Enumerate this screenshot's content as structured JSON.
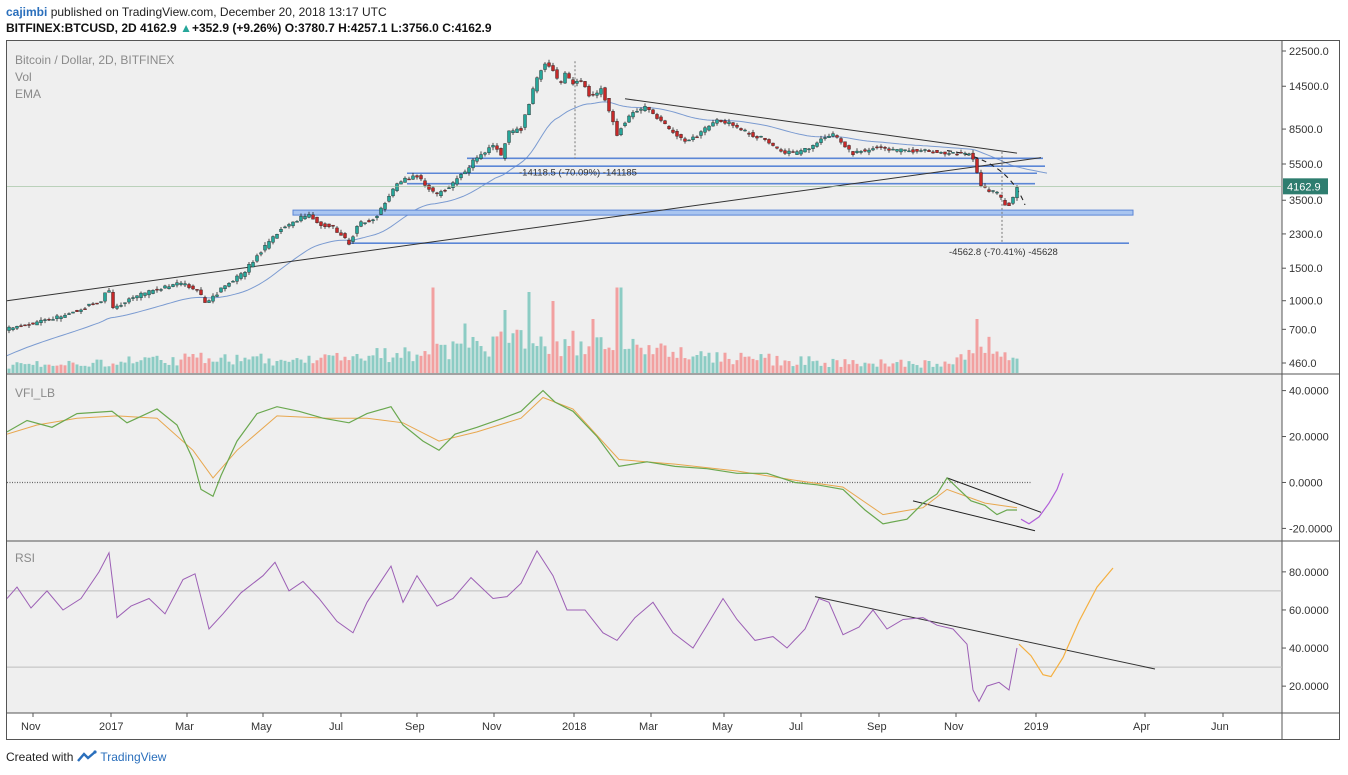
{
  "header": {
    "author": "cajimbi",
    "published_text": "published on TradingView.com, December 20, 2018 13:17 UTC",
    "symbol": "BITFINEX:BTCUSD, 2D",
    "last": "4162.9",
    "change_arrow": "▲",
    "change": "+352.9 (+9.26%)",
    "o_label": "O:",
    "o_value": "3780.7",
    "h_label": "H:",
    "h_value": "4257.1",
    "l_label": "L:",
    "l_value": "3756.0",
    "c_label": "C:",
    "c_value": "4162.9"
  },
  "legend": {
    "title": "Bitcoin / Dollar, 2D, BITFINEX",
    "vol": "Vol",
    "ema": "EMA",
    "vfi": "VFI_LB",
    "rsi": "RSI"
  },
  "footer": {
    "created_with": "Created with",
    "brand": "TradingView"
  },
  "colors": {
    "up": "#26a69a",
    "down": "#c62828",
    "wick": "#222222",
    "vol_up": "#8cccc4",
    "vol_down": "#f2a0a0",
    "ema": "#7b9bd1",
    "vfi": "#6aa84f",
    "vfi_signal": "#e8a74e",
    "rsi": "#9c5fb5",
    "projection_orange": "#f5b041",
    "projection_purple": "#b15fd9",
    "level_fill": "#a9c5f0",
    "level_stroke": "#5b86d6",
    "price_label_bg": "#2e7d6f",
    "trendline": "#333333"
  },
  "chart_data": [
    {
      "type": "candlestick",
      "title": "Bitcoin / Dollar, 2D, BITFINEX",
      "scale": "log",
      "y_ticks": [
        "22500.0",
        "14500.0",
        "8500.0",
        "5500.0",
        "3500.0",
        "2300.0",
        "1500.0",
        "1000.0",
        "700.0",
        "460.0"
      ],
      "x_ticks": [
        "Nov",
        "2017",
        "Mar",
        "May",
        "Jul",
        "Sep",
        "Nov",
        "2018",
        "Mar",
        "May",
        "Jul",
        "Sep",
        "Nov",
        "2019",
        "Apr",
        "Jun"
      ],
      "last_price_label": "4162.9",
      "price_path": [
        [
          0,
          700
        ],
        [
          30,
          760
        ],
        [
          60,
          840
        ],
        [
          94,
          1000
        ],
        [
          101,
          1180
        ],
        [
          106,
          900
        ],
        [
          128,
          1050
        ],
        [
          150,
          1150
        ],
        [
          172,
          1250
        ],
        [
          184,
          1180
        ],
        [
          190,
          1120
        ],
        [
          200,
          960
        ],
        [
          216,
          1180
        ],
        [
          236,
          1400
        ],
        [
          256,
          1900
        ],
        [
          272,
          2400
        ],
        [
          290,
          2750
        ],
        [
          302,
          2950
        ],
        [
          312,
          2600
        ],
        [
          326,
          2500
        ],
        [
          342,
          2050
        ],
        [
          352,
          2600
        ],
        [
          368,
          2800
        ],
        [
          378,
          3400
        ],
        [
          390,
          4300
        ],
        [
          408,
          4800
        ],
        [
          420,
          4200
        ],
        [
          428,
          3700
        ],
        [
          444,
          4200
        ],
        [
          458,
          5000
        ],
        [
          470,
          6000
        ],
        [
          488,
          7000
        ],
        [
          494,
          6000
        ],
        [
          502,
          8200
        ],
        [
          514,
          8500
        ],
        [
          522,
          11500
        ],
        [
          528,
          15000
        ],
        [
          534,
          18000
        ],
        [
          540,
          19500
        ],
        [
          546,
          18000
        ],
        [
          552,
          14500
        ],
        [
          558,
          17000
        ],
        [
          566,
          15000
        ],
        [
          574,
          15500
        ],
        [
          584,
          12500
        ],
        [
          594,
          14000
        ],
        [
          604,
          10000
        ],
        [
          610,
          8000
        ],
        [
          616,
          9000
        ],
        [
          626,
          10500
        ],
        [
          640,
          11200
        ],
        [
          652,
          9500
        ],
        [
          666,
          8200
        ],
        [
          680,
          7200
        ],
        [
          692,
          8000
        ],
        [
          710,
          9500
        ],
        [
          726,
          9000
        ],
        [
          742,
          8000
        ],
        [
          758,
          7500
        ],
        [
          772,
          6400
        ],
        [
          788,
          6300
        ],
        [
          800,
          6600
        ],
        [
          814,
          7500
        ],
        [
          826,
          8000
        ],
        [
          836,
          7000
        ],
        [
          846,
          6300
        ],
        [
          858,
          6500
        ],
        [
          870,
          6800
        ],
        [
          886,
          6500
        ],
        [
          900,
          6500
        ],
        [
          916,
          6550
        ],
        [
          930,
          6400
        ],
        [
          946,
          6300
        ],
        [
          962,
          6200
        ],
        [
          968,
          5600
        ],
        [
          972,
          4300
        ],
        [
          980,
          4000
        ],
        [
          990,
          3800
        ],
        [
          998,
          3350
        ],
        [
          1004,
          3300
        ],
        [
          1010,
          4162.9
        ]
      ],
      "horizontal_levels": [
        5900,
        5350,
        4900,
        4300,
        3000,
        2050
      ],
      "annotations": [
        "-14118.5 (-70.09%) -141185",
        "-4562.8 (-70.41%) -45628"
      ]
    },
    {
      "type": "bar",
      "series": [
        {
          "name": "Vol"
        }
      ],
      "note": "volume overlay in the price pane, relative heights 0-1",
      "profile": [
        [
          0,
          0.08
        ],
        [
          100,
          0.12
        ],
        [
          200,
          0.16
        ],
        [
          300,
          0.14
        ],
        [
          420,
          0.24
        ],
        [
          520,
          0.36
        ],
        [
          600,
          0.3
        ],
        [
          700,
          0.18
        ],
        [
          820,
          0.12
        ],
        [
          940,
          0.1
        ],
        [
          975,
          0.32
        ],
        [
          1012,
          0.2
        ]
      ],
      "spikes": [
        [
          427,
          0.95
        ],
        [
          521,
          0.9
        ],
        [
          612,
          0.95
        ],
        [
          498,
          0.7
        ],
        [
          547,
          0.8
        ],
        [
          586,
          0.6
        ],
        [
          971,
          0.6
        ],
        [
          458,
          0.55
        ]
      ]
    },
    {
      "type": "line",
      "title": "VFI_LB",
      "y_ticks": [
        "40.0000",
        "20.0000",
        "0.0000",
        "-20.0000"
      ],
      "ylim": [
        -22,
        42
      ],
      "zero_line": 0,
      "series": [
        {
          "name": "VFI_LB",
          "values": [
            [
              0,
              22
            ],
            [
              20,
              27
            ],
            [
              45,
              24
            ],
            [
              70,
              30
            ],
            [
              105,
              31
            ],
            [
              120,
              26
            ],
            [
              150,
              32
            ],
            [
              170,
              25
            ],
            [
              186,
              10
            ],
            [
              194,
              -3
            ],
            [
              206,
              -6
            ],
            [
              214,
              3
            ],
            [
              230,
              18
            ],
            [
              250,
              30
            ],
            [
              270,
              33
            ],
            [
              292,
              31
            ],
            [
              316,
              28
            ],
            [
              342,
              26
            ],
            [
              360,
              30
            ],
            [
              384,
              33
            ],
            [
              396,
              25
            ],
            [
              416,
              18
            ],
            [
              432,
              14
            ],
            [
              448,
              21
            ],
            [
              470,
              24
            ],
            [
              496,
              28
            ],
            [
              514,
              31
            ],
            [
              526,
              36
            ],
            [
              536,
              40
            ],
            [
              548,
              35
            ],
            [
              566,
              31
            ],
            [
              590,
              20
            ],
            [
              612,
              7
            ],
            [
              640,
              9
            ],
            [
              668,
              7
            ],
            [
              700,
              6
            ],
            [
              730,
              4
            ],
            [
              760,
              4
            ],
            [
              788,
              0
            ],
            [
              810,
              -1
            ],
            [
              836,
              -3
            ],
            [
              858,
              -12
            ],
            [
              876,
              -18
            ],
            [
              900,
              -16
            ],
            [
              916,
              -9
            ],
            [
              930,
              -5
            ],
            [
              940,
              2
            ],
            [
              952,
              -3
            ],
            [
              964,
              -8
            ],
            [
              978,
              -10
            ],
            [
              990,
              -14
            ],
            [
              1000,
              -12
            ],
            [
              1010,
              -12
            ]
          ]
        },
        {
          "name": "Signal",
          "values": [
            [
              0,
              21
            ],
            [
              30,
              25
            ],
            [
              70,
              28
            ],
            [
              110,
              29
            ],
            [
              150,
              28
            ],
            [
              186,
              14
            ],
            [
              206,
              2
            ],
            [
              230,
              14
            ],
            [
              270,
              29
            ],
            [
              320,
              28
            ],
            [
              360,
              28
            ],
            [
              396,
              26
            ],
            [
              432,
              18
            ],
            [
              470,
              22
            ],
            [
              514,
              28
            ],
            [
              536,
              37
            ],
            [
              566,
              32
            ],
            [
              612,
              10
            ],
            [
              668,
              8
            ],
            [
              730,
              5
            ],
            [
              788,
              1
            ],
            [
              836,
              -2
            ],
            [
              876,
              -14
            ],
            [
              916,
              -11
            ],
            [
              940,
              -3
            ],
            [
              978,
              -9
            ],
            [
              1010,
              -11
            ]
          ]
        },
        {
          "name": "Projection",
          "values": [
            [
              1014,
              -16
            ],
            [
              1022,
              -18
            ],
            [
              1032,
              -15
            ],
            [
              1042,
              -9
            ],
            [
              1050,
              -3
            ],
            [
              1056,
              4
            ]
          ]
        }
      ]
    },
    {
      "type": "line",
      "title": "RSI",
      "y_ticks": [
        "80.0000",
        "60.0000",
        "40.0000",
        "20.0000"
      ],
      "ylim": [
        8,
        92
      ],
      "bands": [
        70,
        30
      ],
      "series": [
        {
          "name": "RSI",
          "values": [
            [
              0,
              66
            ],
            [
              10,
              72
            ],
            [
              24,
              61
            ],
            [
              40,
              70
            ],
            [
              56,
              60
            ],
            [
              74,
              66
            ],
            [
              92,
              80
            ],
            [
              102,
              90
            ],
            [
              110,
              56
            ],
            [
              124,
              62
            ],
            [
              142,
              66
            ],
            [
              158,
              58
            ],
            [
              176,
              76
            ],
            [
              188,
              79
            ],
            [
              202,
              50
            ],
            [
              216,
              58
            ],
            [
              234,
              69
            ],
            [
              256,
              78
            ],
            [
              268,
              85
            ],
            [
              282,
              70
            ],
            [
              296,
              75
            ],
            [
              312,
              66
            ],
            [
              330,
              54
            ],
            [
              346,
              48
            ],
            [
              360,
              64
            ],
            [
              384,
              83
            ],
            [
              396,
              64
            ],
            [
              410,
              78
            ],
            [
              430,
              62
            ],
            [
              446,
              66
            ],
            [
              464,
              77
            ],
            [
              486,
              66
            ],
            [
              500,
              67
            ],
            [
              514,
              74
            ],
            [
              530,
              91
            ],
            [
              546,
              78
            ],
            [
              560,
              60
            ],
            [
              578,
              60
            ],
            [
              596,
              48
            ],
            [
              610,
              44
            ],
            [
              628,
              56
            ],
            [
              646,
              64
            ],
            [
              666,
              48
            ],
            [
              686,
              40
            ],
            [
              700,
              52
            ],
            [
              716,
              66
            ],
            [
              730,
              55
            ],
            [
              748,
              44
            ],
            [
              766,
              46
            ],
            [
              780,
              40
            ],
            [
              798,
              50
            ],
            [
              812,
              66
            ],
            [
              822,
              64
            ],
            [
              836,
              47
            ],
            [
              852,
              51
            ],
            [
              866,
              60
            ],
            [
              880,
              50
            ],
            [
              896,
              55
            ],
            [
              916,
              56
            ],
            [
              930,
              52
            ],
            [
              946,
              50
            ],
            [
              960,
              42
            ],
            [
              966,
              18
            ],
            [
              972,
              12
            ],
            [
              980,
              20
            ],
            [
              992,
              22
            ],
            [
              1002,
              18
            ],
            [
              1010,
              40
            ]
          ]
        },
        {
          "name": "Projection",
          "values": [
            [
              1012,
              42
            ],
            [
              1024,
              36
            ],
            [
              1036,
              26
            ],
            [
              1044,
              25
            ],
            [
              1056,
              35
            ],
            [
              1072,
              54
            ],
            [
              1090,
              72
            ],
            [
              1106,
              82
            ]
          ]
        }
      ]
    }
  ]
}
